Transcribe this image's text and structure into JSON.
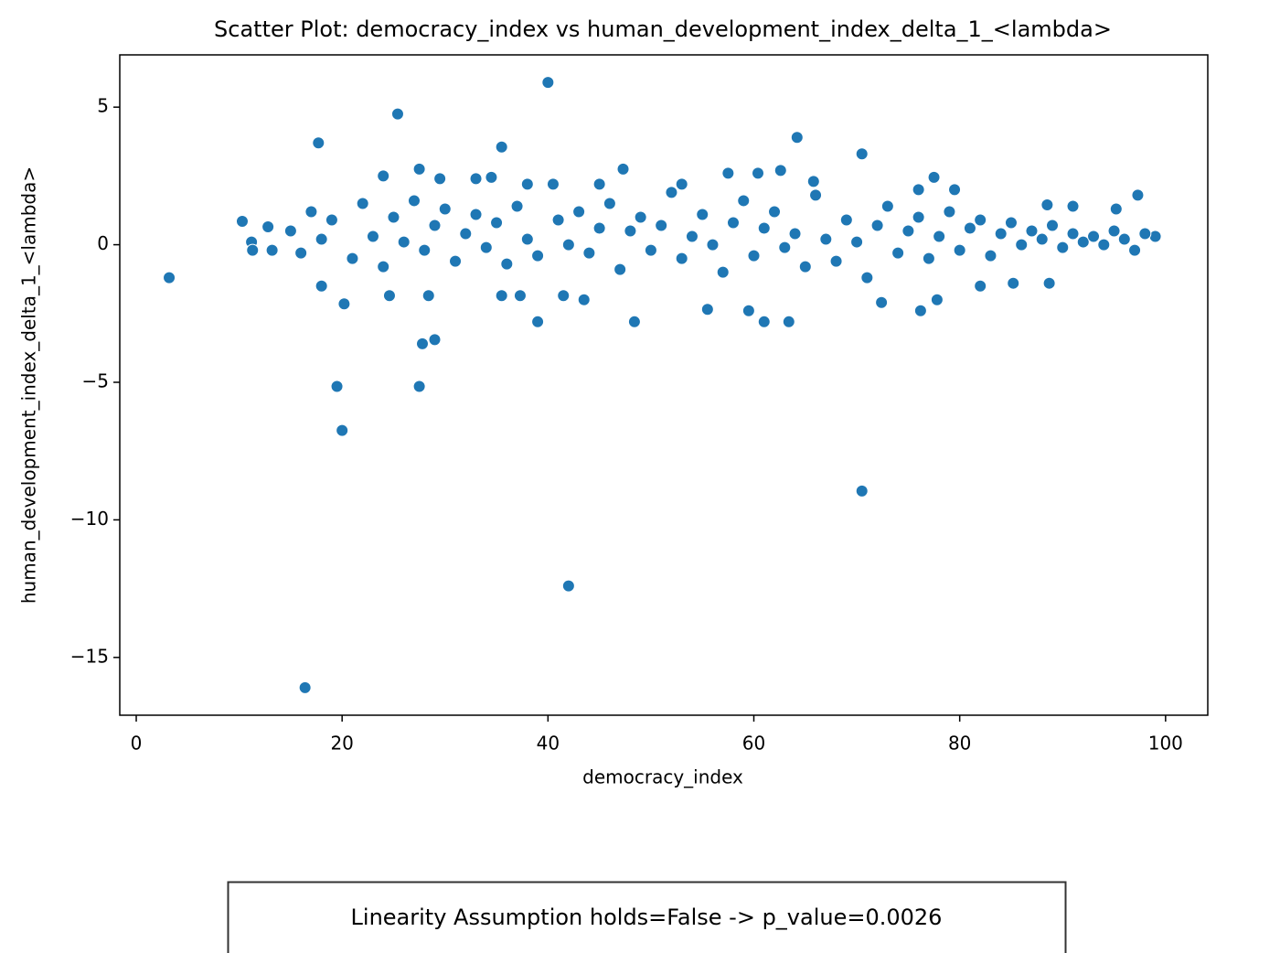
{
  "chart_data": {
    "type": "scatter",
    "title": "Scatter Plot: democracy_index vs human_development_index_delta_1_<lambda>",
    "x_label": "democracy_index",
    "y_label": "human_development_index_delta_1_<lambda>",
    "annotation": "Linearity Assumption holds=False -> p_value=0.0026",
    "color": "#1f77b4",
    "xlim": [
      -1.6,
      104.1
    ],
    "ylim": [
      -17.1,
      6.9
    ],
    "xticks": [
      0,
      20,
      40,
      60,
      80,
      100
    ],
    "yticks": [
      {
        "value": -15,
        "label": "−15"
      },
      {
        "value": -10,
        "label": "−10"
      },
      {
        "value": -5,
        "label": "−5"
      },
      0,
      5
    ],
    "x": [
      3.2,
      16.4,
      42,
      70.5,
      20,
      19.5,
      27.5,
      27.8,
      29,
      40,
      25.4,
      17.7,
      35.5,
      64.2,
      70.5,
      10.3,
      12.8,
      11.2,
      11.3,
      13.2,
      39,
      48.4,
      61,
      63.4,
      55.5,
      59.5,
      76.2,
      77.8,
      72.4,
      18,
      20.2,
      43.5,
      41.5,
      35.5,
      37.3,
      24.6,
      28.4,
      88.7,
      85.2,
      82,
      97.3,
      99,
      95.2,
      88.5,
      91,
      77.5,
      79.5,
      76,
      57.5,
      60.4,
      62.6,
      47.3,
      27.5,
      24,
      29.5,
      33,
      34.5,
      45,
      40.5,
      38,
      65.8,
      53,
      15,
      16,
      17,
      18,
      19,
      21,
      22,
      23,
      24,
      25,
      26,
      27,
      28,
      29,
      30,
      31,
      32,
      33,
      34,
      35,
      36,
      37,
      38,
      39,
      41,
      42,
      43,
      44,
      45,
      46,
      47,
      48,
      49,
      50,
      51,
      52,
      53,
      54,
      55,
      56,
      57,
      58,
      59,
      60,
      61,
      62,
      63,
      64,
      65,
      66,
      67,
      68,
      69,
      70,
      71,
      72,
      73,
      74,
      75,
      76,
      77,
      78,
      79,
      80,
      81,
      82,
      83,
      84,
      85,
      86,
      87,
      88,
      89,
      90,
      91,
      92,
      93,
      94,
      95,
      96,
      97,
      98
    ],
    "values": [
      -1.2,
      -16.1,
      -12.4,
      -8.95,
      -6.75,
      -5.15,
      -5.15,
      -3.6,
      -3.45,
      5.9,
      4.75,
      3.7,
      3.55,
      3.9,
      3.3,
      0.85,
      0.65,
      0.1,
      -0.2,
      -0.2,
      -2.8,
      -2.8,
      -2.8,
      -2.8,
      -2.35,
      -2.4,
      -2.4,
      -2.0,
      -2.1,
      -1.5,
      -2.15,
      -2.0,
      -1.85,
      -1.85,
      -1.85,
      -1.85,
      -1.85,
      -1.4,
      -1.4,
      -1.5,
      1.8,
      0.3,
      1.3,
      1.45,
      1.4,
      2.45,
      2.0,
      2.0,
      2.6,
      2.6,
      2.7,
      2.75,
      2.75,
      2.5,
      2.4,
      2.4,
      2.45,
      2.2,
      2.2,
      2.2,
      2.3,
      2.2,
      0.5,
      -0.3,
      1.2,
      0.2,
      0.9,
      -0.5,
      1.5,
      0.3,
      -0.8,
      1.0,
      0.1,
      1.6,
      -0.2,
      0.7,
      1.3,
      -0.6,
      0.4,
      1.1,
      -0.1,
      0.8,
      -0.7,
      1.4,
      0.2,
      -0.4,
      0.9,
      0.0,
      1.2,
      -0.3,
      0.6,
      1.5,
      -0.9,
      0.5,
      1.0,
      -0.2,
      0.7,
      1.9,
      -0.5,
      0.3,
      1.1,
      0.0,
      -1.0,
      0.8,
      1.6,
      -0.4,
      0.6,
      1.2,
      -0.1,
      0.4,
      -0.8,
      1.8,
      0.2,
      -0.6,
      0.9,
      0.1,
      -1.2,
      0.7,
      1.4,
      -0.3,
      0.5,
      1.0,
      -0.5,
      0.3,
      1.2,
      -0.2,
      0.6,
      0.9,
      -0.4,
      0.4,
      0.8,
      0.0,
      0.5,
      0.2,
      0.7,
      -0.1,
      0.4,
      0.1,
      0.3,
      0.0,
      0.5,
      0.2,
      -0.2,
      0.4
    ]
  }
}
